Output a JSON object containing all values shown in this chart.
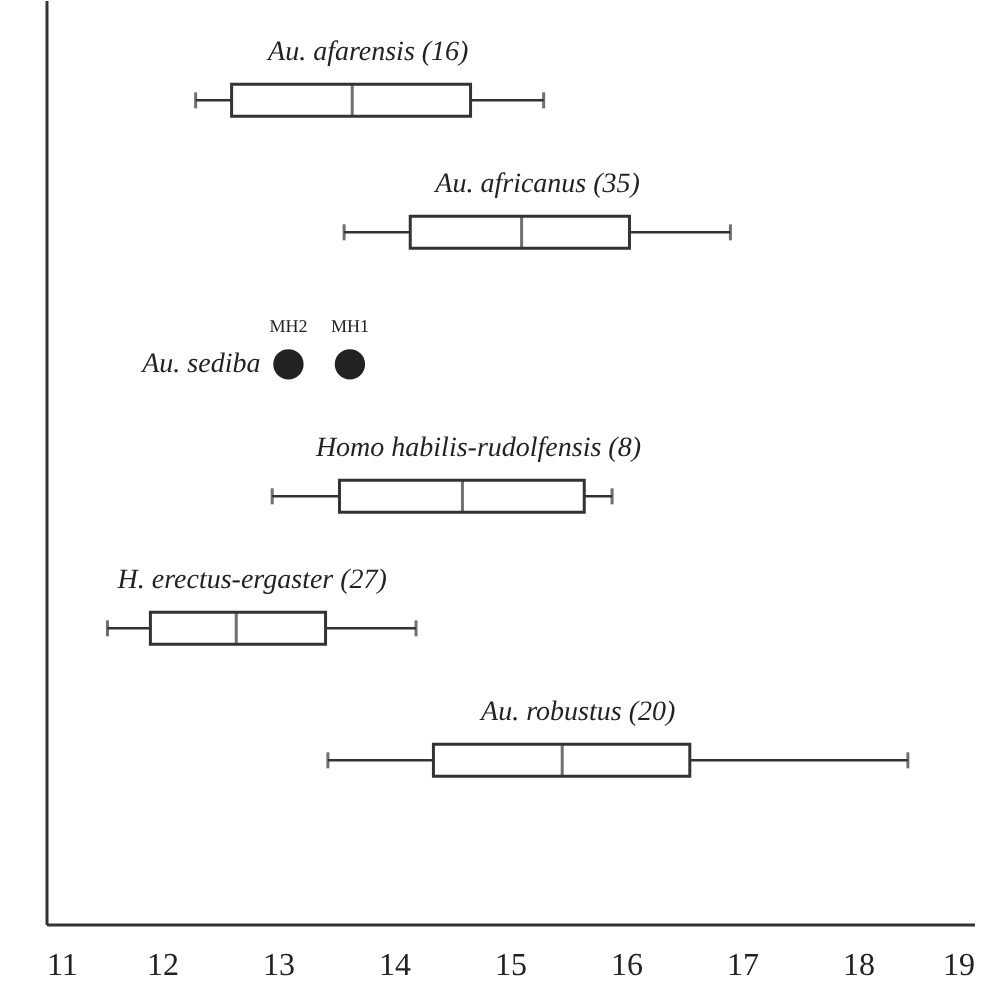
{
  "chart_data": {
    "type": "box",
    "orientation": "horizontal",
    "categories": [
      "Au. afarensis (16)",
      "Au. africanus (35)",
      "Au. sediba",
      "Homo habilis-rudolfensis (8)",
      "H. erectus-ergaster (27)",
      "Au. robustus (20)"
    ],
    "series": [
      {
        "color": "#333333",
        "boxes": [
          {
            "low": 12.29,
            "q1": 12.6,
            "median": 13.64,
            "q3": 14.66,
            "high": 15.29
          },
          {
            "low": 13.57,
            "q1": 14.14,
            "median": 15.1,
            "q3": 16.03,
            "high": 16.9
          },
          null,
          {
            "low": 12.95,
            "q1": 13.53,
            "median": 14.59,
            "q3": 15.64,
            "high": 15.88
          },
          {
            "low": 11.53,
            "q1": 11.9,
            "median": 12.64,
            "q3": 13.41,
            "high": 14.19
          },
          {
            "low": 13.43,
            "q1": 14.34,
            "median": 15.45,
            "q3": 16.55,
            "high": 18.43
          }
        ]
      },
      {
        "type": "scatter",
        "color": "#222222",
        "marker": "circle",
        "x": [
          "Au. sediba",
          "Au. sediba"
        ],
        "values": [
          13.09,
          13.62
        ]
      }
    ],
    "annotations": [
      {
        "text": "MH2",
        "x": 13.09,
        "y": "Au. sediba"
      },
      {
        "text": "MH1",
        "x": 13.62,
        "y": "Au. sediba"
      }
    ],
    "xlim": [
      11,
      19
    ],
    "xticks": [
      11,
      12,
      13,
      14,
      15,
      16,
      17,
      18,
      19
    ],
    "grid": false
  }
}
